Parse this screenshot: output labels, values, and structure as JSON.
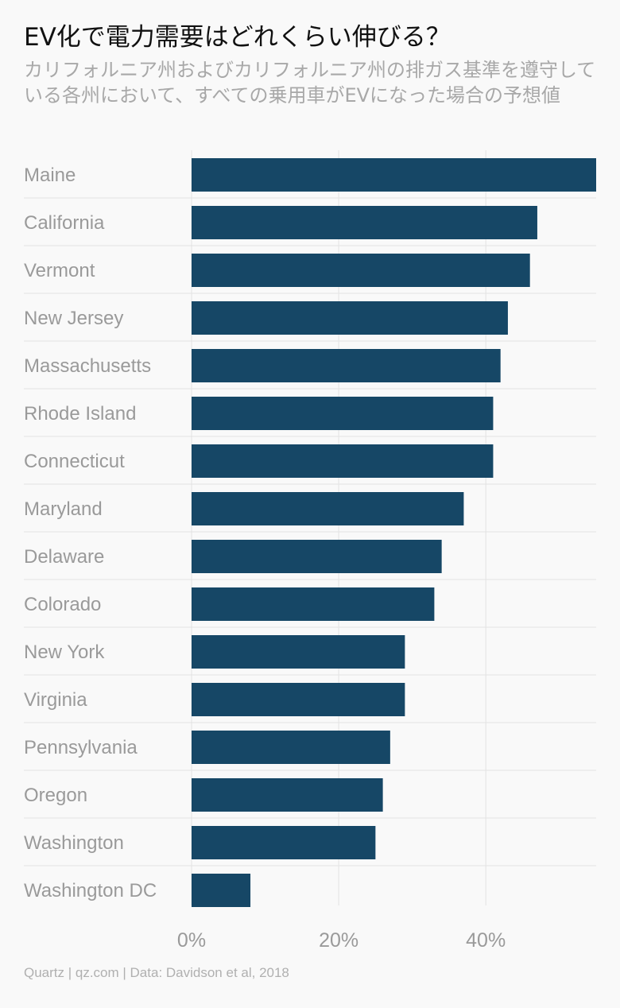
{
  "chart_data": {
    "type": "bar",
    "orientation": "horizontal",
    "title": "EV化で電力需要はどれくらい伸びる？",
    "subtitle": "カリフォルニア州およびカリフォルニア州の排ガス基準を遵守している各州において、すべての乗用車がEVになった場合の予想値",
    "categories": [
      "Maine",
      "California",
      "Vermont",
      "New Jersey",
      "Massachusetts",
      "Rhode Island",
      "Connecticut",
      "Maryland",
      "Delaware",
      "Colorado",
      "New York",
      "Virginia",
      "Pennsylvania",
      "Oregon",
      "Washington",
      "Washington DC"
    ],
    "values": [
      55,
      47,
      46,
      43,
      42,
      41,
      41,
      37,
      34,
      33,
      29,
      29,
      27,
      26,
      25,
      8
    ],
    "xlim": [
      0,
      55
    ],
    "xticks": [
      0,
      20,
      40
    ],
    "xtick_labels": [
      "0%",
      "20%",
      "40%"
    ],
    "grid": true,
    "bar_color": "#164766"
  },
  "source": "Quartz | qz.com | Data: Davidson et al, 2018"
}
